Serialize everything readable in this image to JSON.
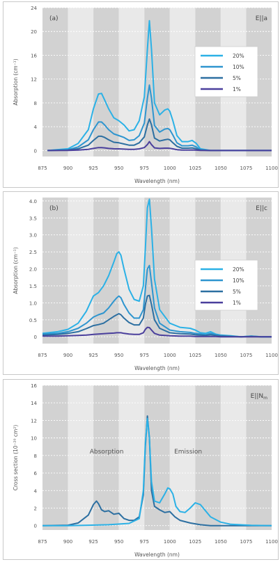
{
  "chart_data": [
    {
      "type": "line",
      "panel_label": "(a)",
      "polarization": "E||a",
      "xlabel": "Wavelength (nm)",
      "ylabel": "Absorption (cm⁻¹)",
      "xlim": [
        875,
        1100
      ],
      "ylim": [
        -1,
        24
      ],
      "x_ticks": [
        "875",
        "900",
        "925",
        "950",
        "975",
        "1000",
        "1025",
        "1050",
        "1075",
        "1100"
      ],
      "y_ticks": [
        "0",
        "4",
        "8",
        "12",
        "16",
        "20",
        "24"
      ],
      "grid": true,
      "legend_position": "right",
      "series": [
        {
          "name": "20%",
          "color": "#2bb1e6",
          "x": [
            880,
            900,
            910,
            920,
            925,
            930,
            933,
            936,
            940,
            945,
            950,
            955,
            960,
            965,
            970,
            975,
            978,
            980,
            982,
            985,
            990,
            995,
            998,
            1000,
            1003,
            1007,
            1012,
            1018,
            1022,
            1026,
            1030,
            1040,
            1060,
            1080,
            1100
          ],
          "y": [
            0,
            0.3,
            1.2,
            3.5,
            7,
            9.5,
            9.6,
            8.5,
            7,
            5.5,
            5,
            4.3,
            3.3,
            3.5,
            5,
            9,
            17,
            21.8,
            17,
            8,
            6,
            6.8,
            7,
            6.6,
            5,
            2.5,
            1.5,
            1.5,
            1.7,
            1.2,
            0.3,
            0,
            0,
            0,
            0
          ]
        },
        {
          "name": "10%",
          "color": "#2e95cf",
          "x": [
            880,
            900,
            910,
            920,
            925,
            930,
            933,
            936,
            940,
            945,
            950,
            955,
            960,
            965,
            970,
            975,
            978,
            980,
            982,
            985,
            990,
            995,
            998,
            1000,
            1003,
            1007,
            1012,
            1018,
            1022,
            1026,
            1030,
            1040,
            1060,
            1080,
            1100
          ],
          "y": [
            0,
            0.15,
            0.6,
            1.8,
            3.5,
            4.8,
            4.8,
            4.3,
            3.5,
            2.8,
            2.5,
            2.2,
            1.7,
            1.8,
            2.5,
            4.6,
            8.8,
            11,
            8.8,
            4.2,
            3.1,
            3.6,
            3.7,
            3.5,
            2.6,
            1.3,
            0.8,
            0.8,
            0.9,
            0.6,
            0.15,
            0,
            0,
            0,
            0
          ]
        },
        {
          "name": "5%",
          "color": "#2c6fa1",
          "x": [
            880,
            900,
            910,
            920,
            925,
            930,
            933,
            936,
            940,
            945,
            950,
            955,
            960,
            965,
            970,
            975,
            978,
            980,
            982,
            985,
            990,
            995,
            998,
            1000,
            1003,
            1007,
            1012,
            1018,
            1022,
            1026,
            1030,
            1040,
            1060,
            1080,
            1100
          ],
          "y": [
            0,
            0.08,
            0.3,
            0.9,
            1.7,
            2.4,
            2.4,
            2.2,
            1.8,
            1.4,
            1.3,
            1.1,
            0.9,
            0.9,
            1.3,
            2.3,
            4.3,
            5.3,
            4.3,
            2.1,
            1.6,
            1.8,
            1.9,
            1.8,
            1.3,
            0.7,
            0.4,
            0.4,
            0.45,
            0.3,
            0.08,
            0,
            0,
            0,
            0
          ]
        },
        {
          "name": "1%",
          "color": "#4a3f9c",
          "x": [
            880,
            900,
            910,
            920,
            925,
            930,
            933,
            936,
            940,
            945,
            950,
            955,
            960,
            965,
            970,
            975,
            978,
            980,
            982,
            985,
            990,
            995,
            998,
            1000,
            1003,
            1007,
            1012,
            1018,
            1022,
            1026,
            1030,
            1040,
            1060,
            1080,
            1100
          ],
          "y": [
            0,
            0.02,
            0.08,
            0.2,
            0.35,
            0.5,
            0.5,
            0.45,
            0.35,
            0.3,
            0.28,
            0.24,
            0.2,
            0.2,
            0.28,
            0.5,
            1,
            1.5,
            1,
            0.45,
            0.35,
            0.4,
            0.4,
            0.38,
            0.28,
            0.15,
            0.08,
            0.08,
            0.1,
            0.06,
            0.02,
            0,
            0,
            0,
            0
          ]
        }
      ]
    },
    {
      "type": "line",
      "panel_label": "(b)",
      "polarization": "E||c",
      "xlabel": "Wavelength (nm)",
      "ylabel": "Absorption (cm⁻¹)",
      "xlim": [
        875,
        1100
      ],
      "ylim": [
        -0.2,
        4.1
      ],
      "x_ticks": [
        "875",
        "900",
        "925",
        "950",
        "975",
        "1000",
        "1025",
        "1050",
        "1075",
        "1100"
      ],
      "y_ticks": [
        "0",
        "0.5",
        "1.0",
        "1.5",
        "2.0",
        "2.5",
        "3.0",
        "3.5",
        "4.0"
      ],
      "grid": true,
      "legend_position": "right",
      "series": [
        {
          "name": "20%",
          "color": "#2bb1e6",
          "x": [
            875,
            890,
            900,
            910,
            918,
            925,
            930,
            935,
            940,
            945,
            948,
            950,
            952,
            955,
            960,
            965,
            970,
            974,
            976,
            978,
            980,
            982,
            985,
            990,
            1000,
            1010,
            1020,
            1025,
            1030,
            1035,
            1040,
            1045,
            1050,
            1060,
            1070,
            1080,
            1090,
            1100
          ],
          "y": [
            0.1,
            0.15,
            0.22,
            0.4,
            0.75,
            1.2,
            1.3,
            1.5,
            1.8,
            2.2,
            2.45,
            2.5,
            2.4,
            2.0,
            1.4,
            1.1,
            1.05,
            1.5,
            2.6,
            3.8,
            4.05,
            3.2,
            1.7,
            0.8,
            0.4,
            0.28,
            0.25,
            0.2,
            0.12,
            0.1,
            0.15,
            0.08,
            0.05,
            0.03,
            0,
            0.02,
            0,
            0
          ]
        },
        {
          "name": "10%",
          "color": "#2e95cf",
          "x": [
            875,
            890,
            900,
            910,
            918,
            925,
            930,
            935,
            940,
            945,
            948,
            950,
            952,
            955,
            960,
            965,
            970,
            974,
            976,
            978,
            980,
            982,
            985,
            990,
            1000,
            1010,
            1020,
            1025,
            1030,
            1035,
            1040,
            1045,
            1050,
            1060,
            1070,
            1080,
            1090,
            1100
          ],
          "y": [
            0.08,
            0.1,
            0.15,
            0.25,
            0.4,
            0.58,
            0.65,
            0.7,
            0.85,
            1.05,
            1.15,
            1.2,
            1.15,
            0.95,
            0.7,
            0.55,
            0.55,
            0.8,
            1.4,
            2.0,
            2.1,
            1.6,
            0.85,
            0.4,
            0.2,
            0.15,
            0.13,
            0.1,
            0.08,
            0.06,
            0.1,
            0.06,
            0.04,
            0.02,
            0,
            0.02,
            0,
            0
          ]
        },
        {
          "name": "5%",
          "color": "#2c6fa1",
          "x": [
            875,
            890,
            900,
            910,
            918,
            925,
            930,
            935,
            940,
            945,
            948,
            950,
            952,
            955,
            960,
            965,
            970,
            974,
            976,
            978,
            980,
            982,
            985,
            990,
            1000,
            1010,
            1020,
            1025,
            1030,
            1035,
            1040,
            1045,
            1050,
            1060,
            1070,
            1080,
            1090,
            1100
          ],
          "y": [
            0.05,
            0.07,
            0.1,
            0.15,
            0.24,
            0.33,
            0.36,
            0.4,
            0.5,
            0.6,
            0.65,
            0.68,
            0.65,
            0.55,
            0.42,
            0.35,
            0.35,
            0.55,
            0.95,
            1.2,
            1.22,
            0.95,
            0.5,
            0.25,
            0.12,
            0.09,
            0.08,
            0.06,
            0.05,
            0.04,
            0.06,
            0.04,
            0.02,
            0.01,
            0,
            0.01,
            0,
            0
          ]
        },
        {
          "name": "1%",
          "color": "#4a3f9c",
          "x": [
            875,
            890,
            900,
            910,
            918,
            925,
            930,
            935,
            940,
            945,
            948,
            950,
            952,
            955,
            960,
            965,
            970,
            974,
            976,
            978,
            980,
            982,
            985,
            990,
            1000,
            1010,
            1020,
            1025,
            1030,
            1035,
            1040,
            1045,
            1050,
            1060,
            1070,
            1080,
            1090,
            1100
          ],
          "y": [
            0.02,
            0.02,
            0.03,
            0.04,
            0.05,
            0.07,
            0.08,
            0.09,
            0.1,
            0.11,
            0.12,
            0.12,
            0.12,
            0.1,
            0.08,
            0.07,
            0.07,
            0.12,
            0.22,
            0.28,
            0.27,
            0.2,
            0.1,
            0.05,
            0.03,
            0.02,
            0.02,
            0.01,
            0.01,
            0.01,
            0.01,
            0.01,
            0,
            0,
            0,
            0,
            0,
            0
          ]
        }
      ]
    },
    {
      "type": "line",
      "polarization": "E||N",
      "polarization_subscript": "m",
      "xlabel": "Wavelength (nm)",
      "ylabel": "Cross section (10⁻²⁰ cm²)",
      "xlim": [
        875,
        1100
      ],
      "ylim": [
        -0.5,
        16
      ],
      "x_ticks": [
        "875",
        "900",
        "925",
        "950",
        "975",
        "1000",
        "1025",
        "1050",
        "1075",
        "1100"
      ],
      "y_ticks": [
        "0",
        "2",
        "4",
        "6",
        "8",
        "10",
        "12",
        "14",
        "16"
      ],
      "grid": true,
      "annotations": [
        "Absorption",
        "Emission"
      ],
      "series": [
        {
          "color": "#2c6fa1",
          "x": [
            875,
            900,
            910,
            920,
            925,
            928,
            930,
            933,
            936,
            940,
            945,
            950,
            955,
            960,
            965,
            970,
            974,
            976,
            978,
            980,
            982,
            985,
            990,
            995,
            1000,
            1005,
            1010,
            1020,
            1030,
            1040,
            1060,
            1080,
            1100
          ],
          "y": [
            0,
            0.05,
            0.3,
            1.2,
            2.4,
            2.8,
            2.5,
            1.8,
            1.6,
            1.7,
            1.3,
            1.4,
            0.8,
            0.6,
            0.6,
            1.0,
            3.5,
            9,
            12.5,
            10,
            4,
            2.2,
            1.8,
            1.5,
            1.6,
            1.0,
            0.6,
            0.3,
            0.1,
            0,
            0,
            0,
            0
          ]
        },
        {
          "color": "#2bb1e6",
          "x": [
            875,
            900,
            920,
            940,
            960,
            970,
            974,
            976,
            978,
            980,
            982,
            985,
            990,
            995,
            998,
            1000,
            1003,
            1006,
            1010,
            1015,
            1020,
            1025,
            1030,
            1035,
            1040,
            1050,
            1060,
            1080,
            1100
          ],
          "y": [
            0,
            0,
            0.05,
            0.1,
            0.25,
            0.8,
            4,
            9.5,
            12.2,
            10,
            5,
            2.8,
            2.6,
            3.6,
            4.3,
            4.2,
            3.6,
            2.2,
            1.6,
            1.5,
            2.0,
            2.6,
            2.4,
            1.7,
            1.0,
            0.4,
            0.15,
            0.03,
            0
          ]
        }
      ]
    }
  ]
}
